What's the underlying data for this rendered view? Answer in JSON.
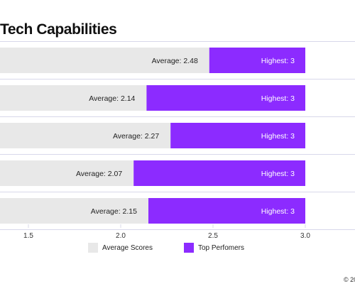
{
  "title_fragment": ": Tech Capabilities",
  "copyright": "© 20",
  "colors": {
    "average": "#e8e8e8",
    "top": "#8c2bff",
    "grid": "#d8d8ea",
    "average_text": "#222222",
    "top_text": "#ffffff"
  },
  "legend": {
    "average_label": "Average Scores",
    "top_label": "Top Perfomers"
  },
  "chart_data": {
    "type": "bar",
    "orientation": "horizontal",
    "title": ": Tech Capabilities",
    "categories": [
      "",
      "",
      "",
      "",
      ""
    ],
    "series": [
      {
        "name": "Average Scores",
        "values": [
          2.48,
          2.14,
          2.27,
          2.07,
          2.15
        ],
        "labels": [
          "Average: 2.48",
          "Average: 2.14",
          "Average: 2.27",
          "Average: 2.07",
          "Average: 2.15"
        ]
      },
      {
        "name": "Top Perfomers",
        "values": [
          3,
          3,
          3,
          3,
          3
        ],
        "labels": [
          "Highest: 3",
          "Highest: 3",
          "Highest: 3",
          "Highest: 3",
          "Highest: 3"
        ]
      }
    ],
    "xticks": [
      "1.5",
      "2.0",
      "2.5",
      "3.0"
    ],
    "xtick_values": [
      1.5,
      2.0,
      2.5,
      3.0
    ],
    "xlim": [
      1.0,
      3.0
    ],
    "grid": true,
    "legend_position": "bottom"
  }
}
